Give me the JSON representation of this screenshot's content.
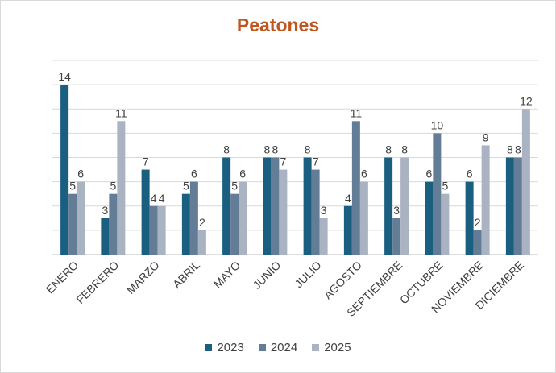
{
  "chart_data": {
    "type": "bar",
    "title": "Peatones",
    "categories": [
      "ENERO",
      "FEBRERO",
      "MARZO",
      "ABRIL",
      "MAYO",
      "JUNIO",
      "JULIO",
      "AGOSTO",
      "SEPTIEMBRE",
      "OCTUBRE",
      "NOVIEMBRE",
      "DICIEMBRE"
    ],
    "series": [
      {
        "name": "2023",
        "color": "#1a5e80",
        "values": [
          14,
          3,
          7,
          5,
          8,
          8,
          8,
          4,
          8,
          6,
          6,
          8
        ]
      },
      {
        "name": "2024",
        "color": "#647d97",
        "values": [
          5,
          5,
          4,
          6,
          5,
          8,
          7,
          11,
          3,
          10,
          2,
          8
        ]
      },
      {
        "name": "2025",
        "color": "#aab3c2",
        "values": [
          6,
          11,
          4,
          2,
          6,
          7,
          3,
          6,
          8,
          5,
          9,
          12
        ]
      }
    ],
    "ylim": [
      0,
      16
    ],
    "grid": true,
    "legend": "bottom",
    "xlabel": "",
    "ylabel": ""
  }
}
